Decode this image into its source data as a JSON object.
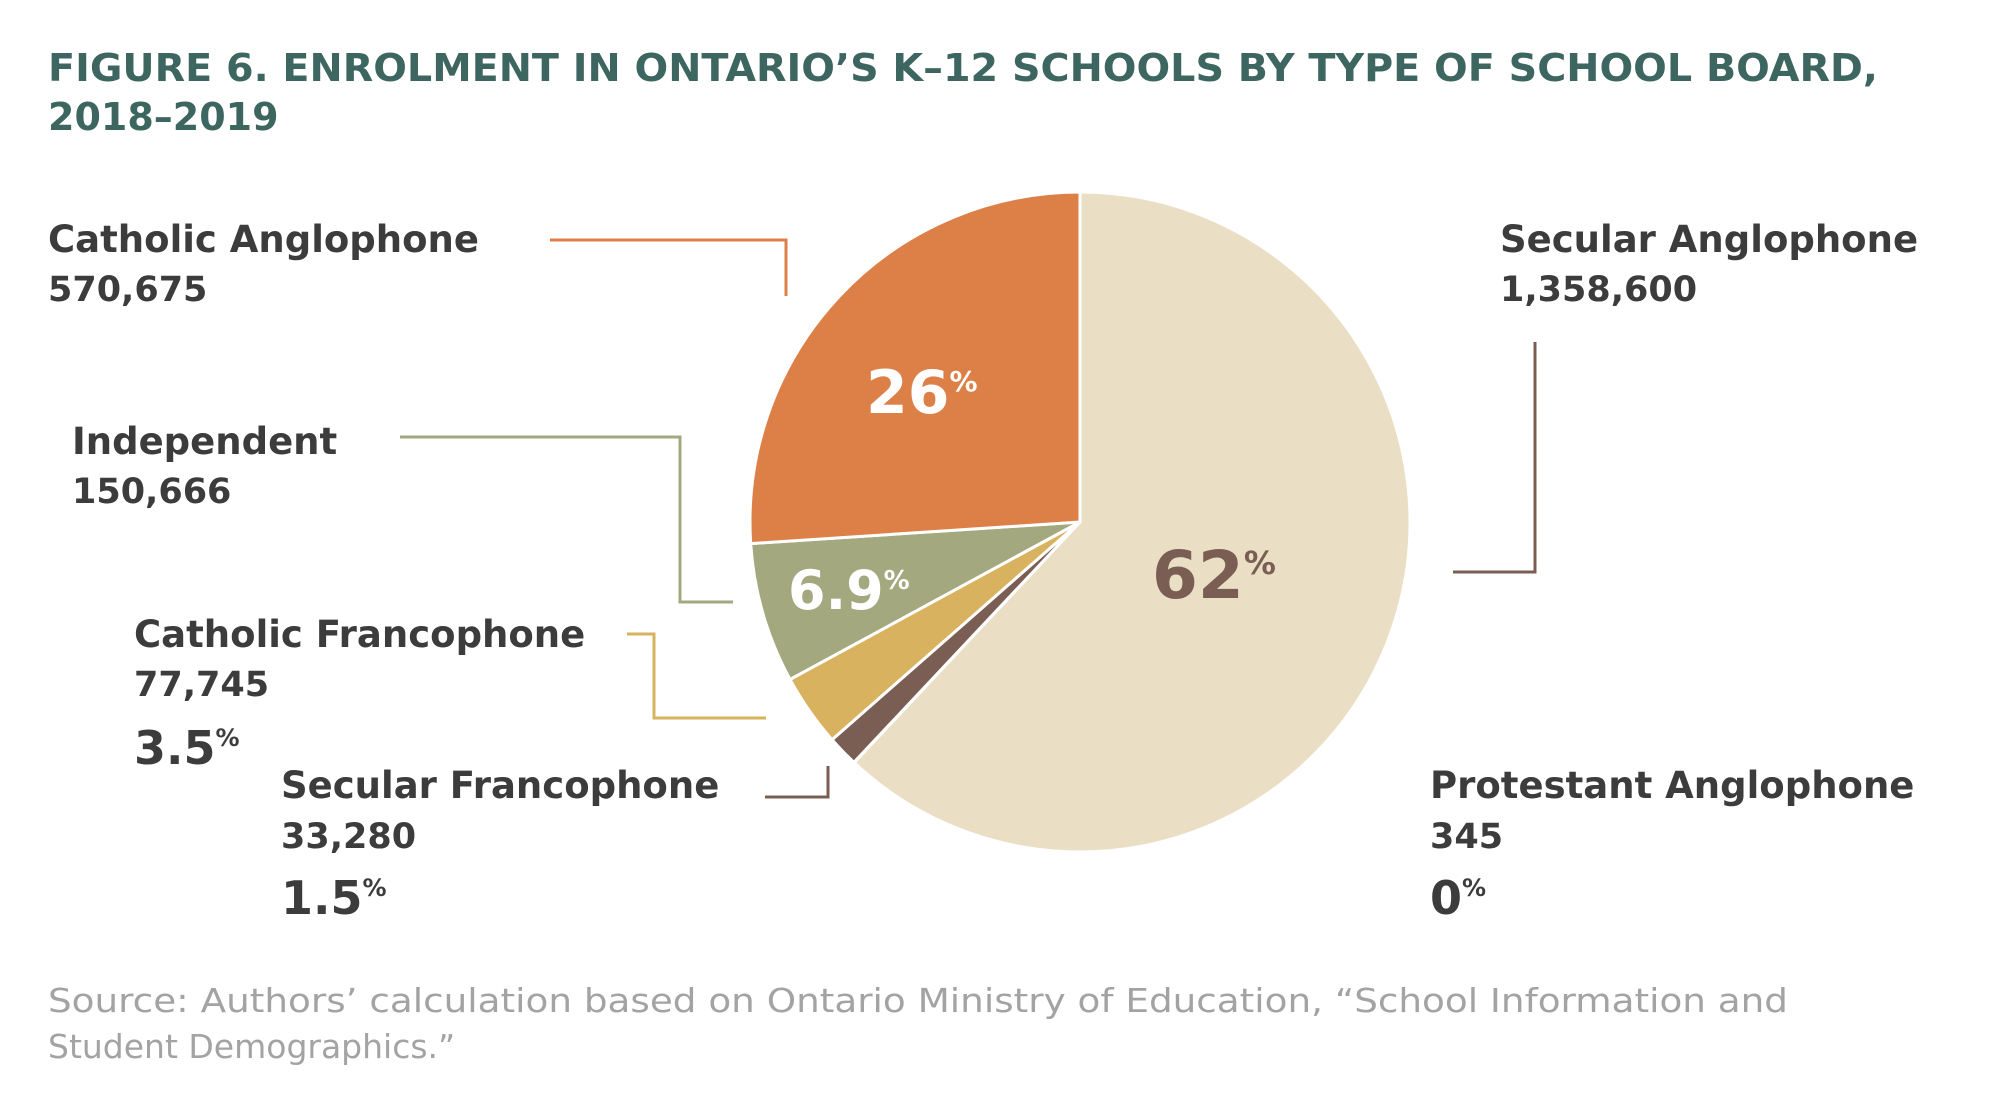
{
  "title_line1": "FIGURE 6. ENROLMENT IN ONTARIO’S K–12 SCHOOLS BY TYPE OF SCHOOL BOARD,",
  "title_line2": "2018–2019",
  "source_line1": "Source: Authors’ calculation based on Ontario Ministry of Education, “School Information and",
  "source_line2": "Student Demographics.”",
  "colors": {
    "title": "#3d6660",
    "text": "#3c3c3c",
    "source": "#a3a3a3",
    "secular_anglophone": "#eadfc5",
    "catholic_anglophone": "#dc8048",
    "independent": "#a3a87e",
    "catholic_francophone": "#d8b25f",
    "secular_francophone": "#7a5e53",
    "protestant_anglophone": "#7a5e53"
  },
  "chart_data": {
    "type": "pie",
    "title": "FIGURE 6. ENROLMENT IN ONTARIO’S K–12 SCHOOLS BY TYPE OF SCHOOL BOARD, 2018–2019",
    "unit": "students",
    "slices": [
      {
        "key": "secular_anglophone",
        "label": "Secular Anglophone",
        "value": 1358600,
        "value_label": "1,358,600",
        "percent": 62,
        "percent_label": "62",
        "percent_sign": "%"
      },
      {
        "key": "protestant_anglophone",
        "label": "Protestant Anglophone",
        "value": 345,
        "value_label": "345",
        "percent": 0,
        "percent_label": "0",
        "percent_sign": "%"
      },
      {
        "key": "secular_francophone",
        "label": "Secular Francophone",
        "value": 33280,
        "value_label": "33,280",
        "percent": 1.5,
        "percent_label": "1.5",
        "percent_sign": "%"
      },
      {
        "key": "catholic_francophone",
        "label": "Catholic Francophone",
        "value": 77745,
        "value_label": "77,745",
        "percent": 3.5,
        "percent_label": "3.5",
        "percent_sign": "%"
      },
      {
        "key": "independent",
        "label": "Independent",
        "value": 150666,
        "value_label": "150,666",
        "percent": 6.9,
        "percent_label": "6.9",
        "percent_sign": "%"
      },
      {
        "key": "catholic_anglophone",
        "label": "Catholic Anglophone",
        "value": 570675,
        "value_label": "570,675",
        "percent": 26,
        "percent_label": "26",
        "percent_sign": "%"
      }
    ],
    "start_angle_deg": 0,
    "direction": "clockwise"
  }
}
